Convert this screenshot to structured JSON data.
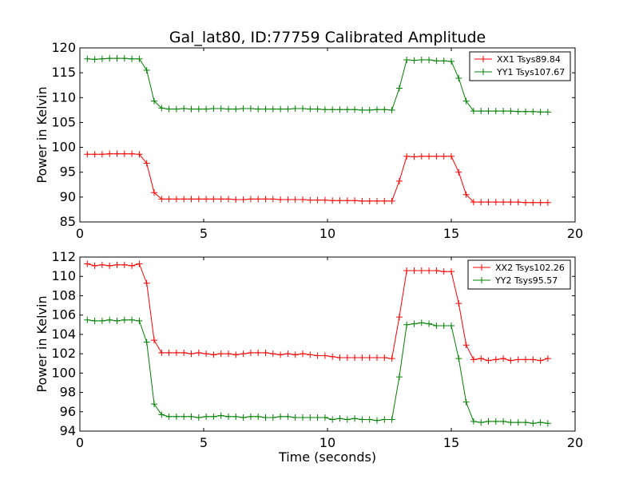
{
  "chart_data": [
    {
      "type": "line",
      "title": "Gal_lat80, ID:77759 Calibrated Amplitude",
      "xlabel": "",
      "ylabel": "Power in Kelvin",
      "xlim": [
        0,
        20
      ],
      "ylim": [
        85,
        120
      ],
      "xticks": [
        "0",
        "5",
        "10",
        "15",
        "20"
      ],
      "yticks": [
        "85",
        "90",
        "95",
        "100",
        "105",
        "110",
        "115",
        "120"
      ],
      "legend_position": "top-right",
      "x": [
        0.3,
        0.6,
        0.9,
        1.2,
        1.5,
        1.8,
        2.1,
        2.4,
        2.7,
        3.0,
        3.3,
        3.6,
        3.9,
        4.2,
        4.5,
        4.8,
        5.1,
        5.4,
        5.7,
        6.0,
        6.3,
        6.6,
        6.9,
        7.2,
        7.5,
        7.8,
        8.1,
        8.4,
        8.7,
        9.0,
        9.3,
        9.6,
        9.9,
        10.2,
        10.5,
        10.8,
        11.1,
        11.4,
        11.7,
        12.0,
        12.3,
        12.6,
        12.9,
        13.2,
        13.5,
        13.8,
        14.1,
        14.4,
        14.7,
        15.0,
        15.3,
        15.6,
        15.9,
        16.2,
        16.5,
        16.8,
        17.1,
        17.4,
        17.7,
        18.0,
        18.3,
        18.6,
        18.9
      ],
      "series": [
        {
          "name": "XX1 Tsys89.84",
          "color": "#ff0000",
          "values": [
            98.6,
            98.6,
            98.6,
            98.7,
            98.7,
            98.7,
            98.7,
            98.6,
            96.8,
            90.9,
            89.6,
            89.6,
            89.6,
            89.6,
            89.6,
            89.6,
            89.6,
            89.6,
            89.6,
            89.6,
            89.5,
            89.5,
            89.6,
            89.6,
            89.6,
            89.6,
            89.5,
            89.5,
            89.5,
            89.5,
            89.4,
            89.4,
            89.4,
            89.3,
            89.3,
            89.3,
            89.3,
            89.2,
            89.2,
            89.2,
            89.2,
            89.2,
            93.2,
            98.2,
            98.1,
            98.2,
            98.2,
            98.2,
            98.2,
            98.2,
            95.0,
            90.5,
            89.0,
            89.0,
            89.0,
            89.0,
            89.0,
            89.0,
            89.0,
            88.9,
            88.9,
            88.9,
            88.9
          ]
        },
        {
          "name": "YY1 Tsys107.67",
          "color": "#008000",
          "values": [
            117.8,
            117.7,
            117.8,
            117.9,
            117.9,
            117.9,
            117.8,
            117.8,
            115.5,
            109.3,
            107.9,
            107.7,
            107.7,
            107.8,
            107.7,
            107.7,
            107.7,
            107.8,
            107.8,
            107.7,
            107.7,
            107.8,
            107.8,
            107.7,
            107.7,
            107.7,
            107.7,
            107.7,
            107.8,
            107.8,
            107.7,
            107.7,
            107.6,
            107.6,
            107.6,
            107.6,
            107.6,
            107.5,
            107.5,
            107.6,
            107.6,
            107.5,
            111.9,
            117.6,
            117.5,
            117.6,
            117.6,
            117.4,
            117.4,
            117.3,
            113.9,
            109.3,
            107.3,
            107.3,
            107.3,
            107.3,
            107.3,
            107.3,
            107.2,
            107.2,
            107.2,
            107.1,
            107.1
          ]
        }
      ]
    },
    {
      "type": "line",
      "title": "",
      "xlabel": "Time (seconds)",
      "ylabel": "Power in Kelvin",
      "xlim": [
        0,
        20
      ],
      "ylim": [
        94,
        112
      ],
      "xticks": [
        "0",
        "5",
        "10",
        "15",
        "20"
      ],
      "yticks": [
        "94",
        "96",
        "98",
        "100",
        "102",
        "104",
        "106",
        "108",
        "110",
        "112"
      ],
      "legend_position": "top-right",
      "x": [
        0.3,
        0.6,
        0.9,
        1.2,
        1.5,
        1.8,
        2.1,
        2.4,
        2.7,
        3.0,
        3.3,
        3.6,
        3.9,
        4.2,
        4.5,
        4.8,
        5.1,
        5.4,
        5.7,
        6.0,
        6.3,
        6.6,
        6.9,
        7.2,
        7.5,
        7.8,
        8.1,
        8.4,
        8.7,
        9.0,
        9.3,
        9.6,
        9.9,
        10.2,
        10.5,
        10.8,
        11.1,
        11.4,
        11.7,
        12.0,
        12.3,
        12.6,
        12.9,
        13.2,
        13.5,
        13.8,
        14.1,
        14.4,
        14.7,
        15.0,
        15.3,
        15.6,
        15.9,
        16.2,
        16.5,
        16.8,
        17.1,
        17.4,
        17.7,
        18.0,
        18.3,
        18.6,
        18.9
      ],
      "series": [
        {
          "name": "XX2 Tsys102.26",
          "color": "#ff0000",
          "values": [
            111.3,
            111.1,
            111.2,
            111.1,
            111.2,
            111.2,
            111.1,
            111.3,
            109.3,
            103.4,
            102.1,
            102.1,
            102.1,
            102.1,
            102.0,
            102.1,
            102.0,
            101.9,
            102.0,
            102.0,
            101.9,
            102.0,
            102.1,
            102.1,
            102.1,
            102.0,
            101.9,
            102.0,
            101.9,
            102.0,
            101.9,
            101.8,
            101.8,
            101.7,
            101.6,
            101.6,
            101.6,
            101.6,
            101.6,
            101.6,
            101.6,
            101.5,
            105.8,
            110.6,
            110.6,
            110.6,
            110.6,
            110.6,
            110.5,
            110.5,
            107.2,
            102.9,
            101.4,
            101.5,
            101.3,
            101.4,
            101.5,
            101.3,
            101.4,
            101.4,
            101.4,
            101.3,
            101.5
          ]
        },
        {
          "name": "YY2 Tsys95.57",
          "color": "#008000",
          "values": [
            105.5,
            105.4,
            105.4,
            105.5,
            105.4,
            105.5,
            105.5,
            105.4,
            103.2,
            96.8,
            95.7,
            95.5,
            95.5,
            95.5,
            95.5,
            95.4,
            95.5,
            95.5,
            95.6,
            95.5,
            95.5,
            95.4,
            95.5,
            95.5,
            95.4,
            95.4,
            95.5,
            95.5,
            95.4,
            95.4,
            95.4,
            95.4,
            95.4,
            95.2,
            95.3,
            95.2,
            95.3,
            95.2,
            95.2,
            95.1,
            95.2,
            95.2,
            99.6,
            105.0,
            105.1,
            105.2,
            105.1,
            104.9,
            104.9,
            104.9,
            101.5,
            97.0,
            95.0,
            94.9,
            95.0,
            95.0,
            95.0,
            94.9,
            94.9,
            94.9,
            94.8,
            94.9,
            94.8
          ]
        }
      ]
    }
  ]
}
